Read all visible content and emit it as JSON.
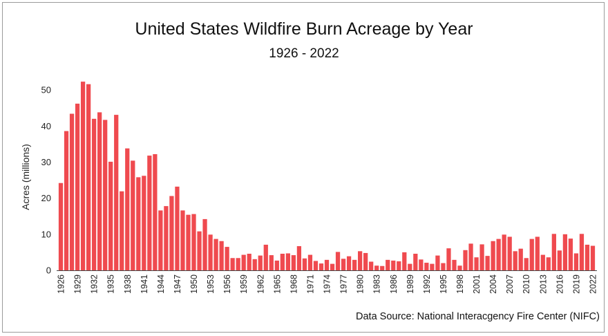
{
  "chart_data": {
    "type": "bar",
    "title": "United States Wildfire Burn Acreage by Year",
    "subtitle": "1926 - 2022",
    "xlabel": "",
    "ylabel": "Acres (millions)",
    "ylim": [
      0,
      55
    ],
    "yticks": [
      0,
      10,
      20,
      30,
      40,
      50
    ],
    "xtick_labels": [
      "1926",
      "1929",
      "1932",
      "1935",
      "1938",
      "1941",
      "1944",
      "1947",
      "1950",
      "1953",
      "1956",
      "1959",
      "1962",
      "1965",
      "1968",
      "1971",
      "1974",
      "1977",
      "1980",
      "1983",
      "1986",
      "1989",
      "1992",
      "1995",
      "1998",
      "2001",
      "2004",
      "2007",
      "2010",
      "2013",
      "2016",
      "2019",
      "2022"
    ],
    "grid": false,
    "legend": "none",
    "bar_color": "#ef4a4f",
    "source": "Data Source: National Interacgency Fire Center (NIFC)",
    "categories": [
      "1926",
      "1927",
      "1928",
      "1929",
      "1930",
      "1931",
      "1932",
      "1933",
      "1934",
      "1935",
      "1936",
      "1937",
      "1938",
      "1939",
      "1940",
      "1941",
      "1942",
      "1943",
      "1944",
      "1945",
      "1946",
      "1947",
      "1948",
      "1949",
      "1950",
      "1951",
      "1952",
      "1953",
      "1954",
      "1955",
      "1956",
      "1957",
      "1958",
      "1959",
      "1960",
      "1961",
      "1962",
      "1963",
      "1964",
      "1965",
      "1966",
      "1967",
      "1968",
      "1969",
      "1970",
      "1971",
      "1972",
      "1973",
      "1974",
      "1975",
      "1976",
      "1977",
      "1978",
      "1979",
      "1980",
      "1981",
      "1982",
      "1983",
      "1984",
      "1985",
      "1986",
      "1987",
      "1988",
      "1989",
      "1990",
      "1991",
      "1992",
      "1993",
      "1994",
      "1995",
      "1996",
      "1997",
      "1998",
      "1999",
      "2000",
      "2001",
      "2002",
      "2003",
      "2004",
      "2005",
      "2006",
      "2007",
      "2008",
      "2009",
      "2010",
      "2011",
      "2012",
      "2013",
      "2014",
      "2015",
      "2016",
      "2017",
      "2018",
      "2019",
      "2020",
      "2021",
      "2022"
    ],
    "values": [
      24.2,
      38.6,
      43.4,
      46.2,
      52.3,
      51.6,
      42.0,
      43.8,
      41.7,
      30.1,
      43.1,
      21.9,
      33.8,
      30.4,
      25.8,
      26.2,
      31.8,
      32.2,
      16.6,
      17.8,
      20.6,
      23.2,
      16.6,
      15.4,
      15.6,
      10.8,
      14.2,
      9.9,
      8.7,
      8.1,
      6.5,
      3.4,
      3.4,
      4.3,
      4.6,
      3.1,
      4.1,
      7.1,
      4.2,
      2.7,
      4.6,
      4.7,
      4.2,
      6.7,
      3.3,
      4.3,
      2.6,
      1.9,
      2.9,
      1.8,
      5.1,
      3.2,
      3.9,
      2.9,
      5.3,
      4.8,
      2.4,
      1.3,
      1.2,
      2.9,
      2.7,
      2.5,
      5.0,
      1.8,
      4.6,
      3.0,
      2.1,
      1.8,
      4.1,
      2.0,
      6.1,
      2.9,
      1.3,
      5.6,
      7.4,
      3.6,
      7.2,
      4.0,
      8.1,
      8.7,
      9.9,
      9.3,
      5.3,
      6.0,
      3.4,
      8.7,
      9.3,
      4.3,
      3.6,
      10.1,
      5.5,
      10.0,
      8.8,
      4.7,
      10.1,
      7.1,
      6.8
    ]
  }
}
